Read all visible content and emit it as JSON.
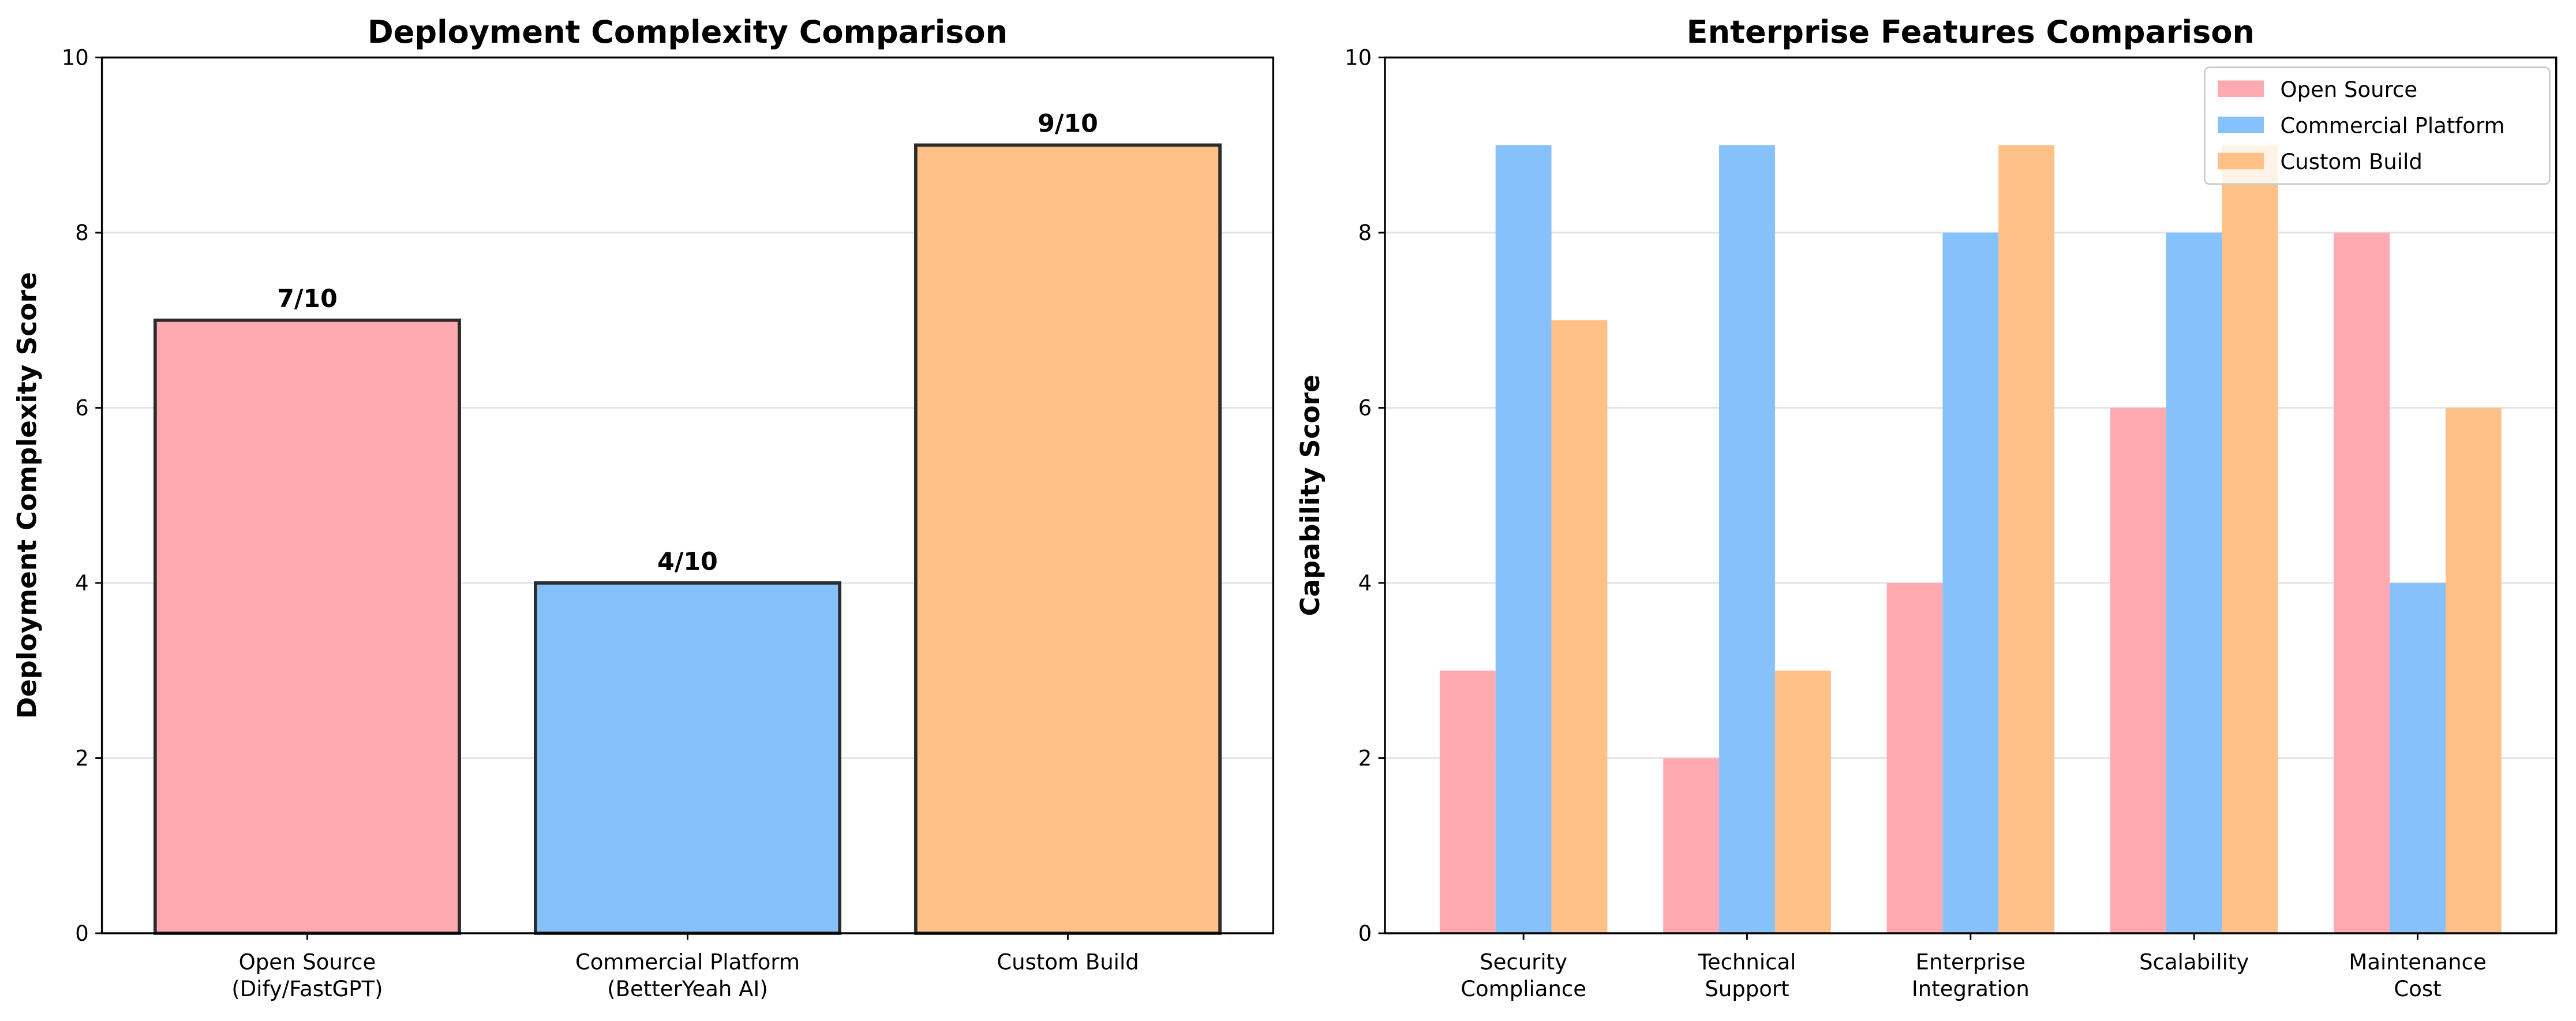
{
  "chart_data": [
    {
      "type": "bar",
      "title": "Deployment Complexity Comparison",
      "ylabel": "Deployment Complexity Score",
      "categories": [
        "Open Source\n(Dify/FastGPT)",
        "Commercial Platform\n(BetterYeah AI)",
        "Custom Build"
      ],
      "values": [
        7,
        4,
        9
      ],
      "value_labels": [
        "7/10",
        "4/10",
        "9/10"
      ],
      "colors": [
        "#ffaab0",
        "#87c1fc",
        "#ffc187"
      ],
      "edgecolor": "#2b2b2b",
      "ylim": [
        0,
        10
      ],
      "yticks": [
        0,
        2,
        4,
        6,
        8,
        10
      ],
      "grid": true
    },
    {
      "type": "grouped-bar",
      "title": "Enterprise Features Comparison",
      "ylabel": "Capability Score",
      "categories": [
        "Security\nCompliance",
        "Technical\nSupport",
        "Enterprise\nIntegration",
        "Scalability",
        "Maintenance\nCost"
      ],
      "series": [
        {
          "name": "Open Source",
          "color": "#ffaab0",
          "values": [
            3,
            2,
            4,
            6,
            8
          ]
        },
        {
          "name": "Commercial Platform",
          "color": "#87c1fc",
          "values": [
            9,
            9,
            8,
            8,
            4
          ]
        },
        {
          "name": "Custom Build",
          "color": "#ffc187",
          "values": [
            7,
            3,
            9,
            9,
            6
          ]
        }
      ],
      "ylim": [
        0,
        10
      ],
      "yticks": [
        0,
        2,
        4,
        6,
        8,
        10
      ],
      "grid": true,
      "legend": "upper right"
    }
  ]
}
